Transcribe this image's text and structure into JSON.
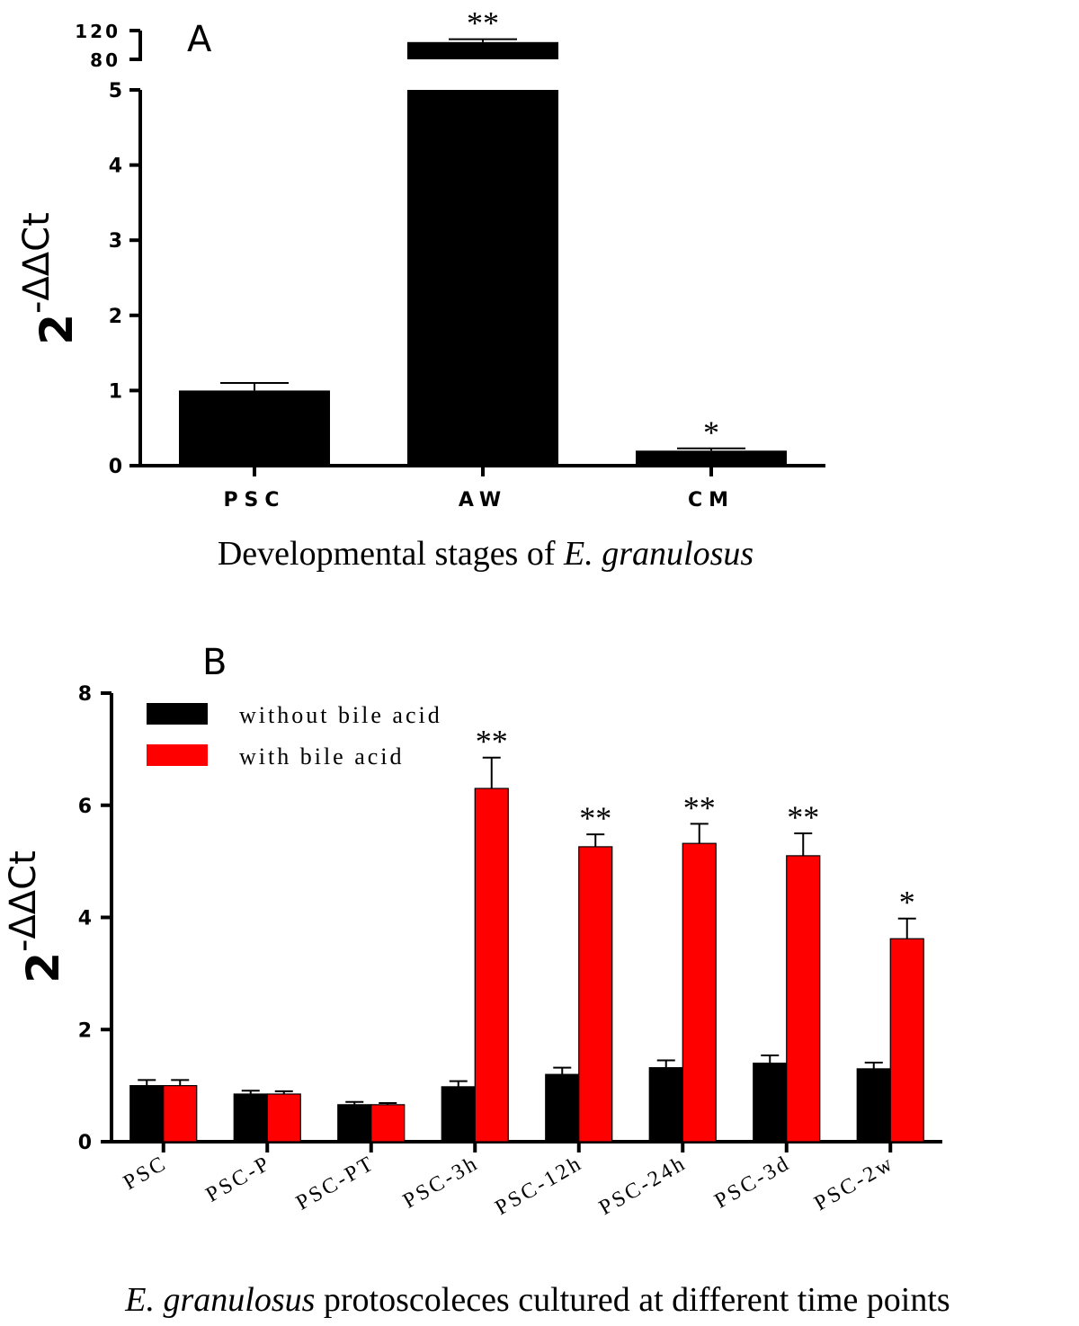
{
  "chart_data": [
    {
      "panel": "A",
      "type": "bar",
      "categories": [
        "PSC",
        "AW",
        "CM"
      ],
      "values": [
        1.0,
        104,
        0.2
      ],
      "errors": [
        0.1,
        4,
        0.03
      ],
      "significance": [
        "",
        "**",
        "*"
      ],
      "xlabel_prefix": "Developmental stages of ",
      "xlabel_italic": "E. granulosus",
      "ylabel_base": "2",
      "ylabel_sup": "-ΔΔCt",
      "yticks_lower": [
        0,
        1,
        2,
        3,
        4,
        5
      ],
      "yticks_upper": [
        80,
        120
      ],
      "ylim": [
        0,
        120
      ],
      "axis_break": [
        5,
        80
      ],
      "grid": false,
      "bar_color": "#000000"
    },
    {
      "panel": "B",
      "type": "bar",
      "categories": [
        "PSC",
        "PSC-P",
        "PSC-PT",
        "PSC-3h",
        "PSC-12h",
        "PSC-24h",
        "PSC-3d",
        "PSC-2w"
      ],
      "series": [
        {
          "name": "without bile acid",
          "color": "#000000",
          "values": [
            1.0,
            0.85,
            0.66,
            0.98,
            1.2,
            1.32,
            1.4,
            1.3
          ],
          "errors": [
            0.1,
            0.06,
            0.05,
            0.1,
            0.12,
            0.13,
            0.14,
            0.11
          ],
          "significance": [
            "",
            "",
            "",
            "",
            "",
            "",
            "",
            ""
          ]
        },
        {
          "name": "with bile acid",
          "color": "#ff0000",
          "values": [
            1.0,
            0.85,
            0.66,
            6.3,
            5.26,
            5.32,
            5.1,
            3.62
          ],
          "errors": [
            0.1,
            0.05,
            0.03,
            0.55,
            0.22,
            0.35,
            0.4,
            0.36
          ],
          "significance": [
            "",
            "",
            "",
            "**",
            "**",
            "**",
            "**",
            "*"
          ]
        }
      ],
      "xlabel_italic": "E. granulosus",
      "xlabel_suffix": " protoscoleces cultured at different time points",
      "ylabel_base": "2",
      "ylabel_sup": "-ΔΔCt",
      "yticks": [
        0,
        2,
        4,
        6,
        8
      ],
      "ylim": [
        0,
        8
      ],
      "legend_position": "top-left",
      "grid": false
    }
  ]
}
